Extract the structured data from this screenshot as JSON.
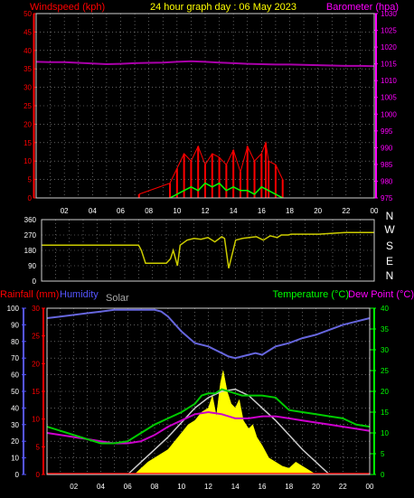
{
  "header": {
    "windspeed_label": "Windspeed (kph)",
    "title": "24 hour graph day : 06 May 2023",
    "barometer_label": "Barometer (hpa)"
  },
  "colors": {
    "background": "#000000",
    "border": "#cfcfcf",
    "grid": "#9a9a9a",
    "wind_axis": "#ff0000",
    "barometer_axis": "#ff00ff",
    "wind_speed": "#ff0000",
    "wind_gust_avg": "#00ff00",
    "barometer": "#aa00aa",
    "direction": "#cccc00",
    "rain_axis": "#ff0000",
    "humidity": "#6666dd",
    "humidity_axis": "#5555ff",
    "temperature": "#00cc00",
    "temperature_axis": "#00ff00",
    "dew_point": "#cc00cc",
    "solar_fill": "#ffff00",
    "solar_curve": "#cccccc",
    "solar_label": "#aaaaaa",
    "rain_fill": "#ff0000",
    "x_ticks": "#ffffff"
  },
  "x_tick_labels": [
    "02",
    "04",
    "06",
    "08",
    "10",
    "12",
    "14",
    "16",
    "18",
    "20",
    "22",
    "00"
  ],
  "panel3": {
    "rainfall_label": "Rainfall (mm)",
    "humidity_label": "Humidity",
    "solar_label": "Solar",
    "temperature_label": "Temperature (°C)",
    "dewpoint_label": "Dew Point (°C)"
  },
  "compass": [
    "N",
    "W",
    "S",
    "E",
    "N"
  ],
  "chart_data": [
    {
      "id": "wind_barometer",
      "type": "line",
      "title": "24 hour graph day : 06 May 2023",
      "x_unit": "hour",
      "xlim": [
        0,
        24
      ],
      "left_axis": {
        "label": "Windspeed (kph)",
        "ylim": [
          0,
          50
        ],
        "ticks": [
          0,
          5,
          10,
          15,
          20,
          25,
          30,
          35,
          40,
          45,
          50
        ]
      },
      "right_axis": {
        "label": "Barometer (hpa)",
        "ylim": [
          975,
          1030
        ],
        "ticks": [
          975,
          980,
          985,
          990,
          995,
          1000,
          1005,
          1010,
          1015,
          1020,
          1025,
          1030
        ]
      },
      "series": [
        {
          "axis": "right",
          "x": [
            0,
            1,
            2,
            3,
            4,
            5,
            6,
            7,
            8,
            9,
            10,
            11,
            12,
            13,
            14,
            15,
            16,
            17,
            18,
            19,
            20,
            21,
            22,
            23,
            24
          ],
          "values": [
            1015.6,
            1015.5,
            1015.5,
            1015.3,
            1015.1,
            1014.9,
            1015.0,
            1015.2,
            1015.3,
            1015.4,
            1015.6,
            1015.8,
            1015.6,
            1015.4,
            1015.2,
            1015.0,
            1014.9,
            1014.8,
            1014.8,
            1014.7,
            1014.6,
            1014.5,
            1014.4,
            1014.4,
            1014.3
          ]
        },
        {
          "axis": "left",
          "x": [
            7.3,
            9.5,
            10,
            10.5,
            11,
            11.5,
            12,
            12.5,
            13,
            13.5,
            14,
            14.5,
            15,
            15.5,
            16,
            16.3,
            16.5,
            17,
            17.5
          ],
          "values": [
            1,
            4,
            8,
            12,
            10,
            14,
            9,
            12,
            11,
            9,
            13,
            7,
            14,
            10,
            12,
            15,
            10,
            9,
            5
          ]
        },
        {
          "axis": "left",
          "x": [
            9.5,
            10,
            10.5,
            11,
            11.5,
            12,
            12.5,
            13,
            13.5,
            14,
            14.5,
            15,
            15.5,
            16,
            16.5,
            17,
            17.5
          ],
          "values": [
            0,
            1,
            2,
            3,
            2,
            4,
            3,
            4,
            2,
            3,
            2,
            2,
            1,
            3,
            2,
            1,
            0
          ]
        }
      ]
    },
    {
      "id": "wind_direction",
      "type": "line",
      "xlim": [
        0,
        24
      ],
      "ylim": [
        0,
        360
      ],
      "y_ticks": [
        0,
        90,
        180,
        270,
        360
      ],
      "series": [
        {
          "x": [
            0,
            1,
            2,
            3,
            4,
            5,
            6,
            7,
            7.2,
            7.5,
            8,
            8.5,
            9,
            9.3,
            9.5,
            9.8,
            10,
            10.5,
            11,
            11.5,
            12,
            12.5,
            13,
            13.2,
            13.5,
            14,
            14.5,
            15,
            15.5,
            16,
            16.5,
            17,
            17.3,
            17.8,
            18,
            19,
            20,
            21,
            22,
            23,
            24
          ],
          "values": [
            210,
            210,
            210,
            210,
            210,
            210,
            210,
            210,
            180,
            105,
            105,
            105,
            105,
            130,
            180,
            90,
            210,
            240,
            250,
            245,
            255,
            230,
            260,
            250,
            75,
            240,
            250,
            255,
            260,
            240,
            265,
            255,
            270,
            270,
            275,
            275,
            275,
            280,
            285,
            285,
            285
          ]
        }
      ]
    },
    {
      "id": "temperature_humidity_solar",
      "type": "line",
      "xlim": [
        0,
        24
      ],
      "rainfall_axis": {
        "label": "Rainfall (mm)",
        "ylim": [
          0,
          30
        ],
        "ticks": [
          0,
          5,
          10,
          15,
          20,
          25,
          30
        ]
      },
      "humidity_axis": {
        "label": "Humidity",
        "ylim": [
          0,
          100
        ],
        "ticks": [
          0,
          10,
          20,
          30,
          40,
          50,
          60,
          70,
          80,
          90,
          100
        ]
      },
      "temperature_axis": {
        "label": "Temperature (°C)",
        "ylim": [
          0,
          40
        ],
        "ticks": [
          0,
          5,
          10,
          15,
          20,
          25,
          30,
          35,
          40
        ]
      },
      "series": [
        {
          "name": "Humidity",
          "axis": "humidity",
          "x": [
            0,
            1,
            2,
            3,
            4,
            5,
            6,
            7,
            8,
            8.5,
            9,
            10,
            11,
            12,
            12.5,
            13,
            13.5,
            14,
            14.5,
            15,
            15.5,
            16,
            17,
            18,
            19,
            20,
            21,
            22,
            23,
            24
          ],
          "values": [
            94,
            95,
            96,
            97,
            98,
            99,
            99,
            99,
            99,
            98,
            95,
            86,
            79,
            77,
            75,
            73,
            71,
            70,
            71,
            72,
            73,
            72,
            77,
            79,
            82,
            84,
            87,
            90,
            92,
            94
          ]
        },
        {
          "name": "Temperature (°C)",
          "axis": "temperature",
          "x": [
            0,
            1,
            2,
            3,
            4,
            5,
            6,
            7,
            8,
            9,
            10,
            11,
            11.5,
            12,
            12.5,
            13,
            13.5,
            14,
            14.5,
            15,
            16,
            17,
            17.5,
            18,
            19,
            20,
            21,
            22,
            23,
            24
          ],
          "values": [
            11.5,
            10.5,
            9.5,
            8.5,
            7.5,
            7.5,
            8,
            10,
            12,
            13.5,
            15,
            17,
            19,
            19.5,
            19.5,
            20.5,
            20,
            19.5,
            19,
            19,
            19,
            18.5,
            17,
            15.5,
            15,
            14.5,
            14,
            13.5,
            12,
            11.5
          ]
        },
        {
          "name": "Dew Point (°C)",
          "axis": "temperature",
          "x": [
            0,
            1,
            2,
            3,
            4,
            5,
            6,
            7,
            8,
            9,
            10,
            11,
            12,
            13,
            14,
            15,
            16,
            17,
            18,
            19,
            20,
            21,
            22,
            23,
            24
          ],
          "values": [
            10,
            9.5,
            9,
            8.5,
            8,
            7.5,
            7.5,
            8,
            9.5,
            11.5,
            13,
            14.5,
            15,
            14.5,
            13.5,
            13.5,
            14,
            14,
            13.5,
            13,
            12.5,
            12,
            11.5,
            11,
            10.5
          ]
        },
        {
          "name": "Solar",
          "axis": "temperature",
          "x": [
            6,
            7,
            8,
            9,
            10,
            11,
            12,
            13,
            14,
            15,
            16,
            17,
            18,
            19,
            20,
            21
          ],
          "values": [
            0,
            3,
            6,
            9,
            12.5,
            16,
            18.5,
            20,
            20.5,
            19,
            16,
            13,
            9.5,
            6,
            3,
            0
          ]
        },
        {
          "name": "Solar measured",
          "axis": "temperature",
          "x": [
            6.5,
            7,
            7.5,
            8,
            8.5,
            9,
            9.5,
            10,
            10.5,
            11,
            11.5,
            12,
            12.3,
            12.6,
            12.9,
            13.1,
            13.4,
            13.7,
            14,
            14.3,
            14.6,
            15,
            15.3,
            15.6,
            16,
            16.5,
            17,
            17.5,
            18,
            18.5,
            19,
            19.5,
            20
          ],
          "values": [
            0,
            1.5,
            3,
            4,
            5,
            6,
            8,
            10,
            12,
            13,
            15,
            16,
            19,
            14,
            22,
            25,
            20,
            17,
            16,
            18,
            13,
            11,
            12,
            9,
            7,
            4,
            3,
            2,
            1.5,
            3,
            2,
            1,
            0
          ]
        }
      ]
    }
  ]
}
